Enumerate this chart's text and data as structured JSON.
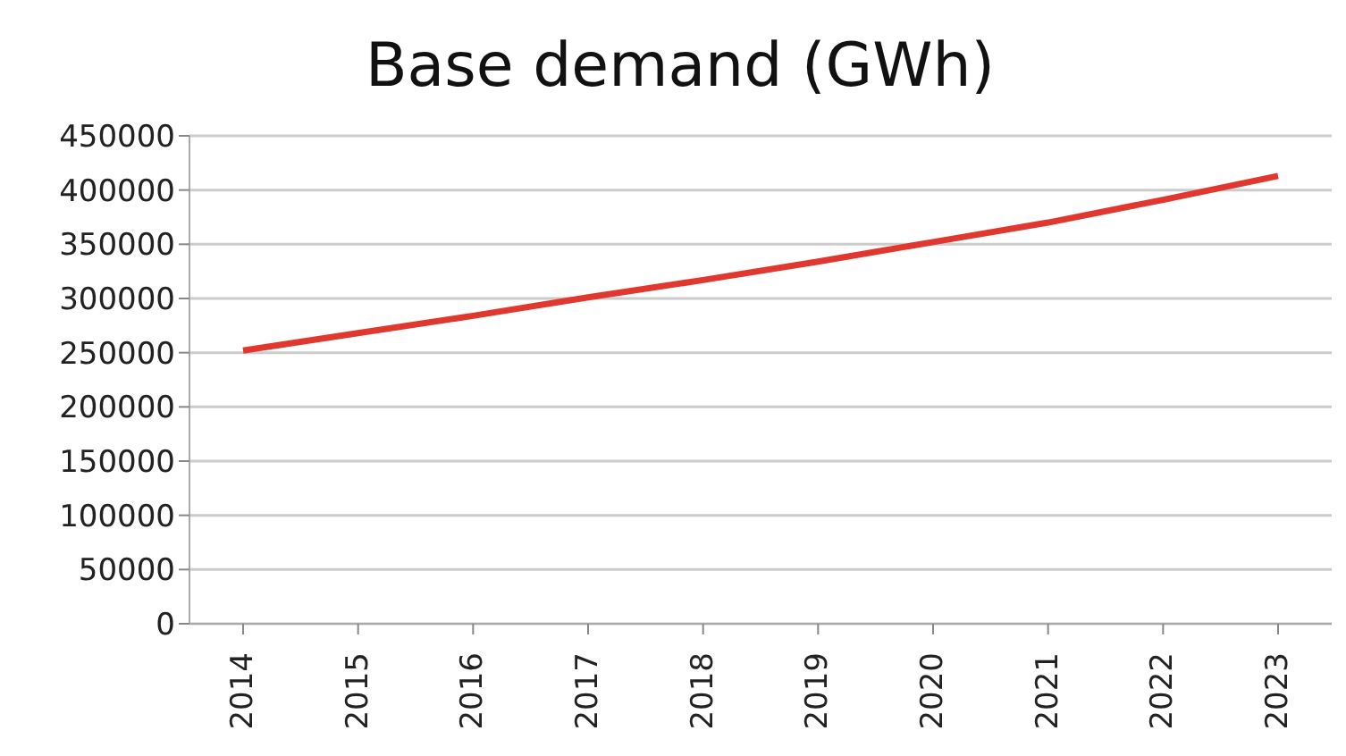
{
  "chart_data": {
    "type": "line",
    "title": "Base demand (GWh)",
    "categories": [
      "2014",
      "2015",
      "2016",
      "2017",
      "2018",
      "2019",
      "2020",
      "2021",
      "2022",
      "2023"
    ],
    "series": [
      {
        "color": "#e0382f",
        "values": [
          252000,
          268000,
          284000,
          301000,
          317000,
          334000,
          352000,
          370000,
          391000,
          413000
        ]
      }
    ],
    "ylim": [
      0,
      450000
    ],
    "yticks": [
      0,
      50000,
      100000,
      150000,
      200000,
      250000,
      300000,
      350000,
      400000,
      450000
    ],
    "grid": "y",
    "legend": false,
    "marker": "none",
    "line_style": "solid"
  }
}
